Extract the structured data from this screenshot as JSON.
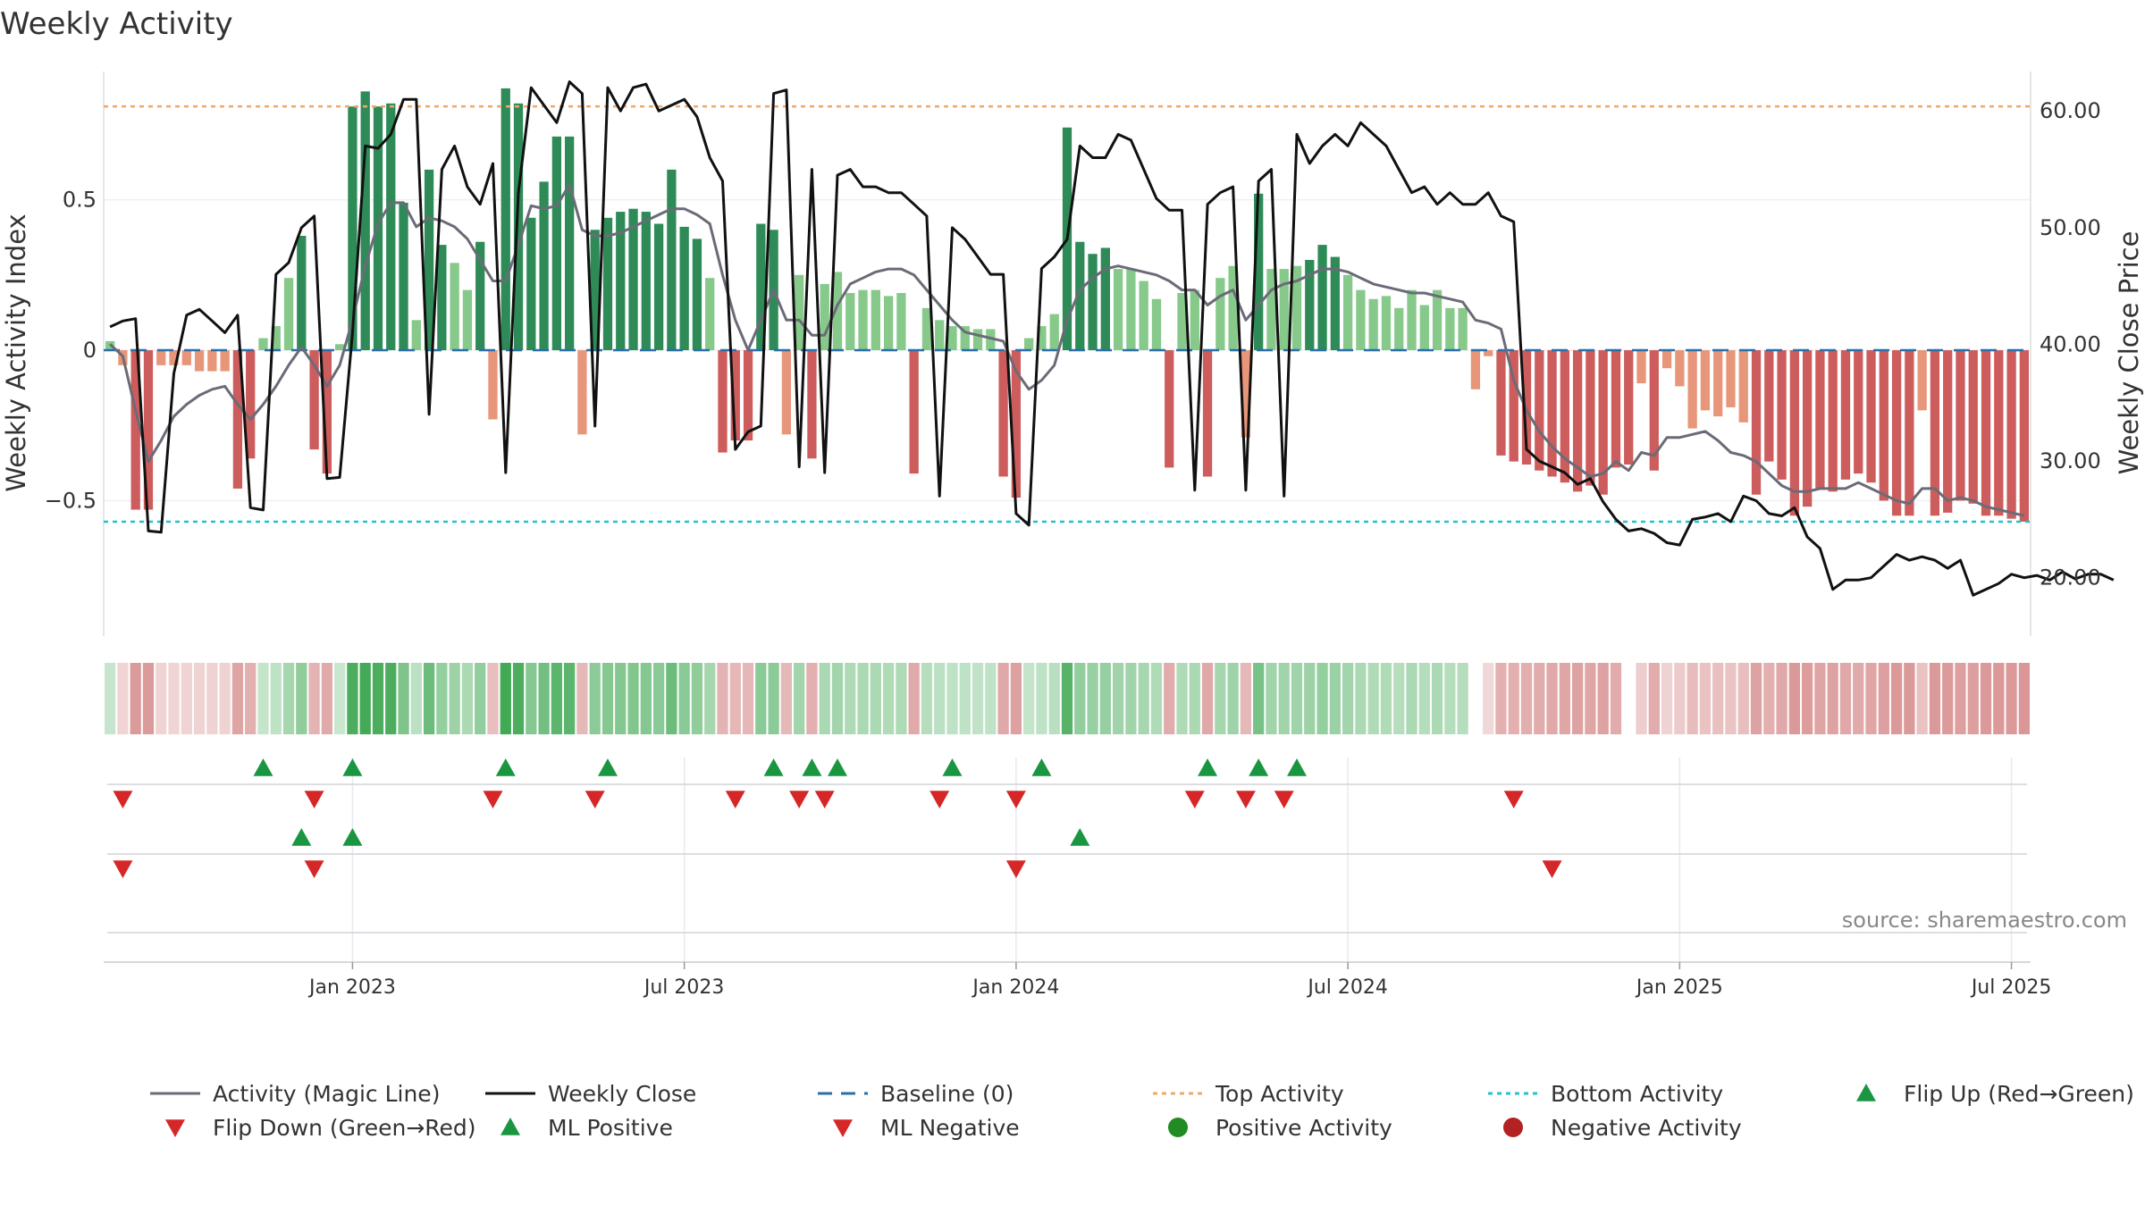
{
  "chart_data": {
    "type": "bar",
    "title": "Weekly Activity",
    "source": "source: sharemaestro.com",
    "ylabel_left": "Weekly Activity Index",
    "ylabel_right": "Weekly Close Price",
    "ylim_left": [
      -0.95,
      0.95
    ],
    "ylim_right": [
      15.0,
      64.0
    ],
    "left_ticks": [
      {
        "value": 0.5,
        "label": "0.5"
      },
      {
        "value": 0.0,
        "label": "0"
      },
      {
        "value": -0.5,
        "label": "−0.5"
      }
    ],
    "right_ticks": [
      {
        "value": 60,
        "label": "60.00"
      },
      {
        "value": 50,
        "label": "50.00"
      },
      {
        "value": 40,
        "label": "40.00"
      },
      {
        "value": 30,
        "label": "30.00"
      },
      {
        "value": 20,
        "label": "20.00"
      }
    ],
    "x_ticks": [
      {
        "index": 19,
        "label": "Jan 2023"
      },
      {
        "index": 45,
        "label": "Jul 2023"
      },
      {
        "index": 71,
        "label": "Jan 2024"
      },
      {
        "index": 97,
        "label": "Jul 2024"
      },
      {
        "index": 123,
        "label": "Jan 2025"
      },
      {
        "index": 149,
        "label": "Jul 2025"
      }
    ],
    "top_activity": 0.81,
    "bottom_activity": -0.57,
    "baseline": 0,
    "colors": {
      "strong_green": "#2e8b57",
      "light_green": "#86c98a",
      "strong_red": "#cd5c5c",
      "light_red": "#e8967a",
      "magic_line": "#6b6b78",
      "close_line": "#111111",
      "baseline": "#2a6fa8",
      "top_line": "#f0a868",
      "bottom_line": "#20c3d0",
      "marker_up": "#1a9641",
      "marker_down": "#d62728",
      "positive_dot": "#228b22",
      "negative_dot": "#b22222"
    },
    "series": [
      {
        "name": "Weekly Activity Index",
        "kind": "bar",
        "values": [
          0.03,
          -0.05,
          -0.53,
          -0.53,
          -0.05,
          -0.05,
          -0.05,
          -0.07,
          -0.07,
          -0.07,
          -0.46,
          -0.36,
          0.04,
          0.08,
          0.24,
          0.38,
          -0.33,
          -0.41,
          0.02,
          0.81,
          0.86,
          0.81,
          0.82,
          0.49,
          0.1,
          0.6,
          0.35,
          0.29,
          0.2,
          0.36,
          -0.23,
          0.87,
          0.82,
          0.44,
          0.56,
          0.71,
          0.71,
          -0.28,
          0.4,
          0.44,
          0.46,
          0.47,
          0.46,
          0.42,
          0.6,
          0.41,
          0.37,
          0.24,
          -0.34,
          -0.3,
          -0.3,
          0.42,
          0.4,
          -0.28,
          0.25,
          -0.36,
          0.22,
          0.26,
          0.19,
          0.2,
          0.2,
          0.18,
          0.19,
          -0.41,
          0.14,
          0.1,
          0.08,
          0.08,
          0.07,
          0.07,
          -0.42,
          -0.49,
          0.04,
          0.08,
          0.12,
          0.74,
          0.36,
          0.32,
          0.34,
          0.27,
          0.27,
          0.23,
          0.17,
          -0.39,
          0.19,
          0.2,
          -0.42,
          0.24,
          0.28,
          -0.29,
          0.52,
          0.27,
          0.27,
          0.28,
          0.3,
          0.35,
          0.31,
          0.25,
          0.2,
          0.17,
          0.18,
          0.14,
          0.2,
          0.15,
          0.2,
          0.14,
          0.14,
          -0.13,
          -0.02,
          -0.35,
          -0.37,
          -0.38,
          -0.4,
          -0.42,
          -0.44,
          -0.47,
          -0.45,
          -0.48,
          -0.39,
          -0.38,
          -0.11,
          -0.4,
          -0.06,
          -0.12,
          -0.26,
          -0.2,
          -0.22,
          -0.19,
          -0.24,
          -0.48,
          -0.37,
          -0.43,
          -0.55,
          -0.52,
          -0.46,
          -0.47,
          -0.43,
          -0.41,
          -0.44,
          -0.5,
          -0.55,
          -0.55,
          -0.2,
          -0.55,
          -0.54,
          -0.5,
          -0.51,
          -0.55,
          -0.55,
          -0.56,
          -0.57
        ]
      },
      {
        "name": "Weekly Close",
        "kind": "line",
        "values": [
          41.5,
          42.0,
          42.2,
          24.0,
          23.9,
          37.5,
          42.5,
          43.0,
          42.0,
          41.0,
          42.5,
          26.0,
          25.8,
          46.0,
          47.0,
          50.0,
          51.0,
          28.5,
          28.6,
          41.0,
          57.0,
          56.8,
          58.0,
          61.0,
          61.0,
          34.0,
          55.0,
          57.0,
          53.5,
          52.0,
          55.5,
          29.0,
          53.0,
          62.0,
          60.5,
          59.0,
          62.5,
          61.5,
          33.0,
          62.0,
          60.0,
          62.0,
          62.3,
          60.0,
          60.5,
          61.0,
          59.5,
          56.0,
          54.0,
          31.0,
          32.5,
          33.0,
          61.5,
          61.8,
          29.5,
          55.0,
          29.0,
          54.5,
          55.0,
          53.5,
          53.5,
          53.0,
          53.0,
          52.0,
          51.0,
          27.0,
          50.0,
          49.0,
          47.5,
          46.0,
          46.0,
          25.5,
          24.5,
          46.5,
          47.5,
          49.0,
          57.0,
          56.0,
          56.0,
          58.0,
          57.5,
          55.0,
          52.5,
          51.5,
          51.5,
          27.5,
          52.0,
          53.0,
          53.5,
          27.5,
          54.0,
          55.0,
          27.0,
          58.0,
          55.5,
          57.0,
          58.0,
          57.0,
          59.0,
          58.0,
          57.0,
          55.0,
          53.0,
          53.5,
          52.0,
          53.0,
          52.0,
          52.0,
          53.0,
          51.0,
          50.5,
          31.0,
          30.0,
          29.5,
          29.0,
          28.0,
          28.5,
          26.5,
          25.0,
          24.0,
          24.2,
          23.8,
          23.0,
          22.8,
          25.0,
          25.2,
          25.5,
          24.8,
          27.0,
          26.6,
          25.5,
          25.3,
          26.0,
          23.5,
          22.5,
          19.0,
          19.8,
          19.8,
          20.0,
          21.0,
          22.0,
          21.5,
          21.8,
          21.5,
          20.8,
          21.5,
          18.5,
          19.0,
          19.5,
          20.3,
          20.0,
          20.2,
          19.8,
          20.5,
          19.9,
          20.3,
          20.3,
          19.8
        ]
      },
      {
        "name": "Activity (Magic Line)",
        "kind": "line",
        "values": [
          0.02,
          -0.02,
          -0.2,
          -0.37,
          -0.3,
          -0.22,
          -0.18,
          -0.15,
          -0.13,
          -0.12,
          -0.18,
          -0.23,
          -0.18,
          -0.12,
          -0.05,
          0.01,
          -0.05,
          -0.12,
          -0.05,
          0.1,
          0.28,
          0.42,
          0.49,
          0.49,
          0.41,
          0.44,
          0.43,
          0.41,
          0.37,
          0.3,
          0.23,
          0.23,
          0.35,
          0.48,
          0.47,
          0.48,
          0.55,
          0.4,
          0.38,
          0.38,
          0.39,
          0.41,
          0.43,
          0.45,
          0.47,
          0.47,
          0.45,
          0.42,
          0.25,
          0.1,
          0.0,
          0.1,
          0.2,
          0.1,
          0.1,
          0.05,
          0.05,
          0.15,
          0.22,
          0.24,
          0.26,
          0.27,
          0.27,
          0.25,
          0.2,
          0.15,
          0.1,
          0.06,
          0.05,
          0.04,
          0.03,
          -0.07,
          -0.13,
          -0.1,
          -0.05,
          0.1,
          0.2,
          0.24,
          0.27,
          0.28,
          0.27,
          0.26,
          0.25,
          0.23,
          0.2,
          0.2,
          0.15,
          0.18,
          0.2,
          0.1,
          0.15,
          0.2,
          0.22,
          0.23,
          0.25,
          0.27,
          0.27,
          0.26,
          0.24,
          0.22,
          0.21,
          0.2,
          0.19,
          0.19,
          0.18,
          0.17,
          0.16,
          0.1,
          0.09,
          0.07,
          -0.1,
          -0.2,
          -0.27,
          -0.32,
          -0.36,
          -0.39,
          -0.42,
          -0.41,
          -0.37,
          -0.4,
          -0.34,
          -0.35,
          -0.29,
          -0.29,
          -0.28,
          -0.27,
          -0.3,
          -0.34,
          -0.35,
          -0.37,
          -0.41,
          -0.45,
          -0.47,
          -0.47,
          -0.46,
          -0.46,
          -0.46,
          -0.44,
          -0.46,
          -0.48,
          -0.5,
          -0.51,
          -0.46,
          -0.46,
          -0.5,
          -0.49,
          -0.5,
          -0.52,
          -0.53,
          -0.54,
          -0.55
        ]
      }
    ],
    "flip_up_weeks": [
      12,
      19,
      31,
      39,
      52,
      55,
      57,
      66,
      73,
      86,
      90,
      93
    ],
    "flip_down_weeks": [
      1,
      16,
      30,
      38,
      49,
      54,
      56,
      65,
      71,
      85,
      89,
      92,
      110
    ],
    "ml_positive_weeks": [
      15,
      19,
      76
    ],
    "ml_negative_weeks": [
      1,
      16,
      71,
      113
    ],
    "legend": [
      {
        "label": "Activity (Magic Line)",
        "style": "line-grey"
      },
      {
        "label": "Weekly Close",
        "style": "line-black"
      },
      {
        "label": "Baseline (0)",
        "style": "dashed-blue"
      },
      {
        "label": "Top Activity",
        "style": "dotted-orange"
      },
      {
        "label": "Bottom Activity",
        "style": "dotted-cyan"
      },
      {
        "label": "Flip Up (Red→Green)",
        "style": "triangle-up"
      },
      {
        "label": "Flip Down (Green→Red)",
        "style": "triangle-down"
      },
      {
        "label": "ML Positive",
        "style": "triangle-up"
      },
      {
        "label": "ML Negative",
        "style": "triangle-down"
      },
      {
        "label": "Positive Activity",
        "style": "dot-green"
      },
      {
        "label": "Negative Activity",
        "style": "dot-red"
      }
    ]
  }
}
